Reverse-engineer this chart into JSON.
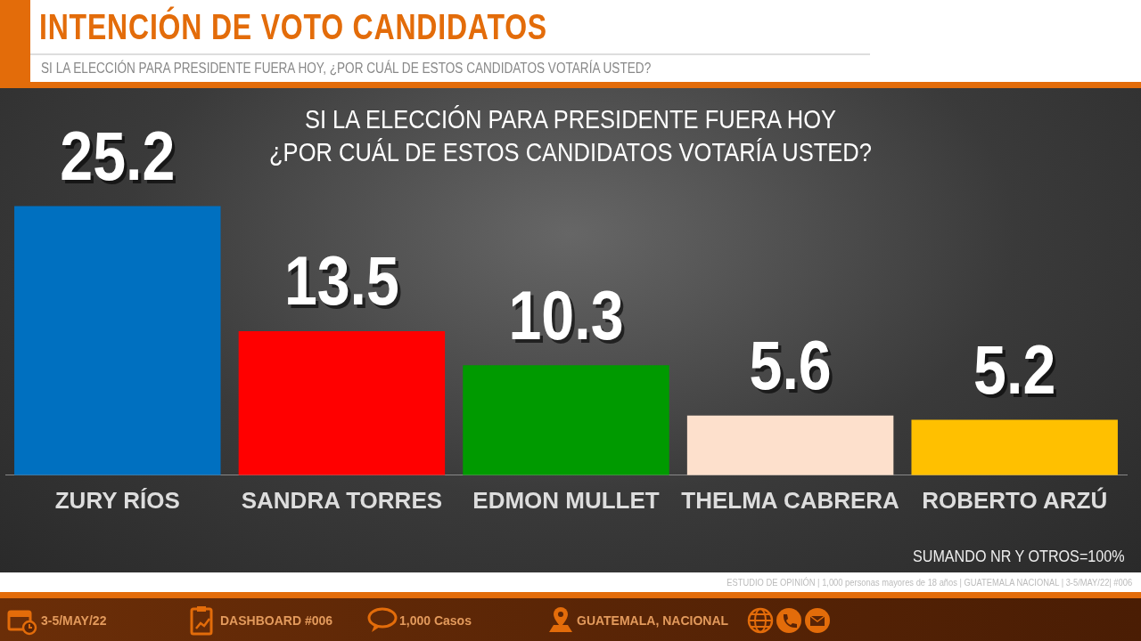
{
  "chart_data": {
    "type": "bar",
    "title": "INTENCIÓN DE VOTO CANDIDATOS",
    "subtitle": "SI LA ELECCIÓN  PARA PRESIDENTE  FUERA HOY, ¿POR CUÁL DE ESTOS CANDIDATOS  VOTARÍA  USTED?",
    "categories": [
      "ZURY RÍOS",
      "SANDRA TORRES",
      "EDMON MULLET",
      "THELMA CABRERA",
      "ROBERTO ARZÚ"
    ],
    "values": [
      25.2,
      13.5,
      10.3,
      5.6,
      5.2
    ],
    "colors": [
      "#0070c0",
      "#ff0000",
      "#009a00",
      "#fde0cc",
      "#ffc000"
    ],
    "data_labels": true,
    "grid": false,
    "legend": false,
    "annotations": [
      "SI LA ELECCIÓN  PARA PRESIDENTE  FUERA HOY",
      "¿POR CUÁL DE ESTOS CANDIDATOS  VOTARÍA  USTED?",
      "SUMANDO  NR Y OTROS=100%",
      "ESTUDIO DE OPINIÓN  | 1,000 personas  mayores de 18 años | GUATEMALA  NACIONAL  | 3-5/MAY/22| #006",
      "3-5/MAY/22",
      "DASHBOARD  #006",
      "1,000 Casos",
      "GUATEMALA, NACIONAL"
    ]
  }
}
